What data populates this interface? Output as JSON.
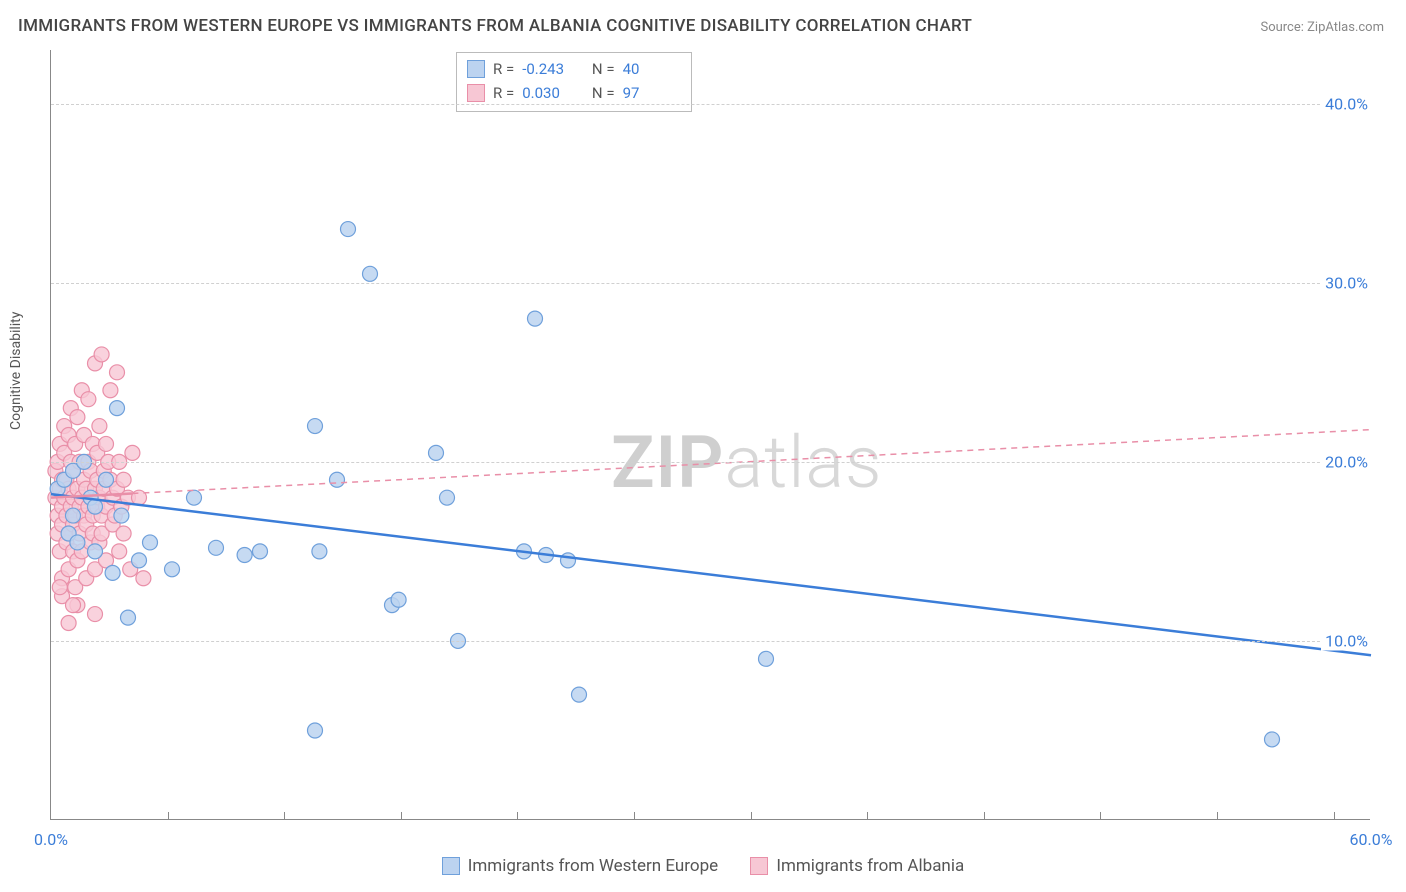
{
  "title": "IMMIGRANTS FROM WESTERN EUROPE VS IMMIGRANTS FROM ALBANIA COGNITIVE DISABILITY CORRELATION CHART",
  "source": "Source: ZipAtlas.com",
  "watermark_bold": "ZIP",
  "watermark_light": "atlas",
  "yaxis_label": "Cognitive Disability",
  "chart": {
    "type": "scatter",
    "xlim": [
      0,
      60
    ],
    "ylim": [
      0,
      43
    ],
    "x_ticks_minor": [
      5.3,
      10.6,
      15.9,
      21.2,
      26.5,
      31.8,
      37.1,
      42.4,
      47.7,
      53.0,
      58.3
    ],
    "x_tick_labels": [
      {
        "x": 0,
        "label": "0.0%"
      },
      {
        "x": 60,
        "label": "60.0%"
      }
    ],
    "y_grid": [
      {
        "y": 10,
        "label": "10.0%"
      },
      {
        "y": 20,
        "label": "20.0%"
      },
      {
        "y": 30,
        "label": "30.0%"
      },
      {
        "y": 40,
        "label": "40.0%"
      }
    ],
    "grid_color": "#d0d0d0",
    "axis_color": "#888888",
    "background_color": "#ffffff",
    "tick_label_color": "#3b7dd8",
    "series": [
      {
        "id": "we",
        "name": "Immigrants from Western Europe",
        "marker_fill": "#bcd3f0",
        "marker_stroke": "#6fa0db",
        "marker_radius": 7.5,
        "marker_opacity": 0.85,
        "line_color": "#3b7dd8",
        "line_width": 2.5,
        "line_dash": "none",
        "R": "-0.243",
        "N": "40",
        "trend": {
          "x1": 0,
          "y1": 18.2,
          "x2": 60,
          "y2": 9.2
        },
        "points": [
          [
            0.3,
            18.5
          ],
          [
            0.6,
            19.0
          ],
          [
            0.8,
            16.0
          ],
          [
            1.0,
            19.5
          ],
          [
            1.0,
            17.0
          ],
          [
            1.2,
            15.5
          ],
          [
            1.5,
            20.0
          ],
          [
            1.8,
            18.0
          ],
          [
            2.0,
            17.5
          ],
          [
            2.0,
            15.0
          ],
          [
            2.5,
            19.0
          ],
          [
            2.8,
            13.8
          ],
          [
            3.0,
            23.0
          ],
          [
            3.2,
            17.0
          ],
          [
            3.5,
            11.3
          ],
          [
            4.0,
            14.5
          ],
          [
            4.5,
            15.5
          ],
          [
            5.5,
            14.0
          ],
          [
            6.5,
            18.0
          ],
          [
            7.5,
            15.2
          ],
          [
            8.8,
            14.8
          ],
          [
            9.5,
            15.0
          ],
          [
            12.0,
            22.0
          ],
          [
            12.2,
            15.0
          ],
          [
            12.0,
            5.0
          ],
          [
            13.0,
            19.0
          ],
          [
            13.5,
            33.0
          ],
          [
            14.5,
            30.5
          ],
          [
            15.5,
            12.0
          ],
          [
            15.8,
            12.3
          ],
          [
            17.5,
            20.5
          ],
          [
            18.0,
            18.0
          ],
          [
            18.5,
            10.0
          ],
          [
            21.5,
            15.0
          ],
          [
            22.0,
            28.0
          ],
          [
            23.5,
            14.5
          ],
          [
            24.0,
            7.0
          ],
          [
            32.5,
            9.0
          ],
          [
            55.5,
            4.5
          ],
          [
            22.5,
            14.8
          ]
        ]
      },
      {
        "id": "al",
        "name": "Immigrants from Albania",
        "marker_fill": "#f7c7d4",
        "marker_stroke": "#e98fa8",
        "marker_radius": 7.5,
        "marker_opacity": 0.8,
        "line_color": "#e98fa8",
        "line_width": 2.5,
        "line_dash": "6,5",
        "solid_until_x": 3.7,
        "R": "0.030",
        "N": "97",
        "trend": {
          "x1": 0,
          "y1": 18.0,
          "x2": 60,
          "y2": 21.8
        },
        "points": [
          [
            0.2,
            18.0
          ],
          [
            0.2,
            19.5
          ],
          [
            0.3,
            17.0
          ],
          [
            0.3,
            16.0
          ],
          [
            0.3,
            20.0
          ],
          [
            0.4,
            18.5
          ],
          [
            0.4,
            15.0
          ],
          [
            0.4,
            21.0
          ],
          [
            0.5,
            19.0
          ],
          [
            0.5,
            17.5
          ],
          [
            0.5,
            16.5
          ],
          [
            0.5,
            13.5
          ],
          [
            0.6,
            18.0
          ],
          [
            0.6,
            20.5
          ],
          [
            0.6,
            22.0
          ],
          [
            0.7,
            17.0
          ],
          [
            0.7,
            19.0
          ],
          [
            0.7,
            15.5
          ],
          [
            0.8,
            18.5
          ],
          [
            0.8,
            21.5
          ],
          [
            0.8,
            16.0
          ],
          [
            0.8,
            14.0
          ],
          [
            0.9,
            17.5
          ],
          [
            0.9,
            20.0
          ],
          [
            0.9,
            23.0
          ],
          [
            1.0,
            18.0
          ],
          [
            1.0,
            19.5
          ],
          [
            1.0,
            15.0
          ],
          [
            1.0,
            16.5
          ],
          [
            1.1,
            17.0
          ],
          [
            1.1,
            21.0
          ],
          [
            1.1,
            13.0
          ],
          [
            1.2,
            18.5
          ],
          [
            1.2,
            22.5
          ],
          [
            1.2,
            14.5
          ],
          [
            1.3,
            17.5
          ],
          [
            1.3,
            20.0
          ],
          [
            1.3,
            16.0
          ],
          [
            1.4,
            18.0
          ],
          [
            1.4,
            24.0
          ],
          [
            1.4,
            15.0
          ],
          [
            1.5,
            19.0
          ],
          [
            1.5,
            17.0
          ],
          [
            1.5,
            21.5
          ],
          [
            1.6,
            18.5
          ],
          [
            1.6,
            16.5
          ],
          [
            1.6,
            13.5
          ],
          [
            1.7,
            20.0
          ],
          [
            1.7,
            17.5
          ],
          [
            1.7,
            23.5
          ],
          [
            1.8,
            18.0
          ],
          [
            1.8,
            15.5
          ],
          [
            1.8,
            19.5
          ],
          [
            1.9,
            17.0
          ],
          [
            1.9,
            21.0
          ],
          [
            1.9,
            16.0
          ],
          [
            2.0,
            18.5
          ],
          [
            2.0,
            14.0
          ],
          [
            2.0,
            25.5
          ],
          [
            2.1,
            17.5
          ],
          [
            2.1,
            20.5
          ],
          [
            2.1,
            19.0
          ],
          [
            2.2,
            18.0
          ],
          [
            2.2,
            15.5
          ],
          [
            2.2,
            22.0
          ],
          [
            2.3,
            17.0
          ],
          [
            2.3,
            16.0
          ],
          [
            2.4,
            19.5
          ],
          [
            2.4,
            18.5
          ],
          [
            2.5,
            21.0
          ],
          [
            2.5,
            14.5
          ],
          [
            2.5,
            17.5
          ],
          [
            2.6,
            20.0
          ],
          [
            2.7,
            24.0
          ],
          [
            2.7,
            19.0
          ],
          [
            2.8,
            18.0
          ],
          [
            2.8,
            16.5
          ],
          [
            2.9,
            17.0
          ],
          [
            3.0,
            18.5
          ],
          [
            3.0,
            25.0
          ],
          [
            3.1,
            15.0
          ],
          [
            3.1,
            20.0
          ],
          [
            3.2,
            17.5
          ],
          [
            3.3,
            19.0
          ],
          [
            3.3,
            16.0
          ],
          [
            3.5,
            18.0
          ],
          [
            3.6,
            14.0
          ],
          [
            3.7,
            20.5
          ],
          [
            0.5,
            12.5
          ],
          [
            1.2,
            12.0
          ],
          [
            2.0,
            11.5
          ],
          [
            4.0,
            18.0
          ],
          [
            4.2,
            13.5
          ],
          [
            2.3,
            26.0
          ],
          [
            1.0,
            12.0
          ],
          [
            0.8,
            11.0
          ],
          [
            0.4,
            13.0
          ]
        ]
      }
    ]
  }
}
